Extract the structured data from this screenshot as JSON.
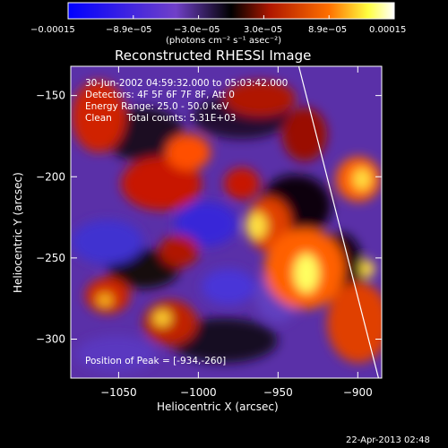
{
  "chart_data": {
    "type": "heatmap",
    "title": "Reconstructed RHESSI Image",
    "xlabel": "Heliocentric X (arcsec)",
    "ylabel": "Heliocentric Y (arcsec)",
    "xlim": [
      -1080,
      -885
    ],
    "ylim": [
      -324,
      -132
    ],
    "x_ticks": [
      -1050,
      -1000,
      -950,
      -900
    ],
    "x_tick_labels": [
      "−1050",
      "−1000",
      "−950",
      "−900"
    ],
    "y_ticks": [
      -150,
      -200,
      -250,
      -300
    ],
    "y_tick_labels": [
      "−150",
      "−200",
      "−250",
      "−300"
    ],
    "colorbar": {
      "range": [
        -0.00015,
        0.00015
      ],
      "tick_labels": [
        "−0.00015",
        "−8.9e−05",
        "−3.0e−05",
        "3.0e−05",
        "8.9e−05",
        "0.00015"
      ],
      "label": "(photons cm⁻² s⁻¹ asec⁻²)",
      "colors": [
        "#0000ff",
        "#7040c8",
        "#000000",
        "#b01800",
        "#ff7000",
        "#ffff40",
        "#ffffff"
      ]
    },
    "annotations": [
      "30-Jun-2002 04:59:32.000 to 05:03:42.000",
      "Detectors: 4F 5F 6F 7F 8F, Att 0",
      "Energy Range: 25.0 - 50.0 keV",
      "Clean     Total counts: 5.31E+03"
    ],
    "peak_label": "Position of Peak = [-934,-260]",
    "peak": [
      -934,
      -260
    ],
    "limb_line": [
      [
        -937,
        -132
      ],
      [
        -887,
        -324
      ]
    ],
    "grid": false
  },
  "footer": {
    "date": "22-Apr-2013 02:48"
  }
}
